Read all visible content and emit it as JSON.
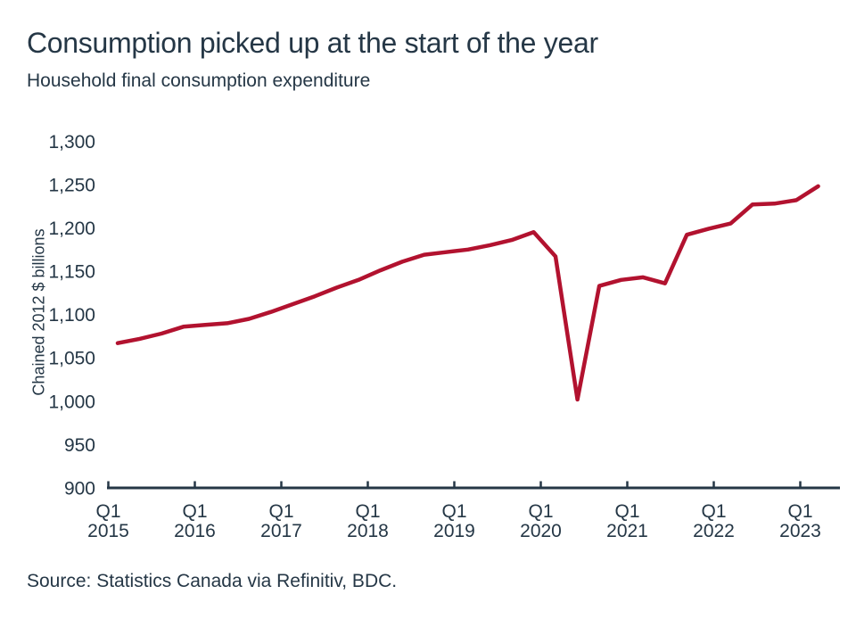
{
  "chart": {
    "title": "Consumption picked up at the start of the year",
    "subtitle": "Household final consumption expenditure",
    "y_axis_title": "Chained 2012 $ billions",
    "source": "Source: Statistics Canada via Refinitiv, BDC.",
    "colors": {
      "line": "#B2122F",
      "text": "#253746",
      "axis": "#253746"
    }
  },
  "chart_data": {
    "type": "line",
    "title": "Consumption picked up at the start of the year",
    "subtitle": "Household final consumption expenditure",
    "xlabel": "",
    "ylabel": "Chained 2012 $ billions",
    "ylim": [
      900,
      1300
    ],
    "y_ticks": [
      900,
      950,
      1000,
      1050,
      1100,
      1150,
      1200,
      1250,
      1300
    ],
    "y_tick_labels": [
      "900",
      "950",
      "1,000",
      "1,050",
      "1,100",
      "1,150",
      "1,200",
      "1,250",
      "1,300"
    ],
    "x_tick_prefix": "Q1",
    "x_tick_years": [
      "2015",
      "2016",
      "2017",
      "2018",
      "2019",
      "2020",
      "2021",
      "2022",
      "2023"
    ],
    "grid": false,
    "legend": "none",
    "series": [
      {
        "name": "Household final consumption expenditure",
        "units": "chained 2012 $ billions",
        "x": [
          "Q1 2015",
          "Q2 2015",
          "Q3 2015",
          "Q4 2015",
          "Q1 2016",
          "Q2 2016",
          "Q3 2016",
          "Q4 2016",
          "Q1 2017",
          "Q2 2017",
          "Q3 2017",
          "Q4 2017",
          "Q1 2018",
          "Q2 2018",
          "Q3 2018",
          "Q4 2018",
          "Q1 2019",
          "Q2 2019",
          "Q3 2019",
          "Q4 2019",
          "Q1 2020",
          "Q2 2020",
          "Q3 2020",
          "Q4 2020",
          "Q1 2021",
          "Q2 2021",
          "Q3 2021",
          "Q4 2021",
          "Q1 2022",
          "Q2 2022",
          "Q3 2022",
          "Q4 2022",
          "Q1 2023"
        ],
        "values": [
          1067,
          1072,
          1078,
          1086,
          1088,
          1090,
          1095,
          1103,
          1112,
          1121,
          1131,
          1140,
          1151,
          1161,
          1169,
          1172,
          1175,
          1180,
          1186,
          1195,
          1167,
          1002,
          1133,
          1140,
          1143,
          1136,
          1192,
          1199,
          1205,
          1227,
          1228,
          1232,
          1248
        ]
      }
    ]
  }
}
